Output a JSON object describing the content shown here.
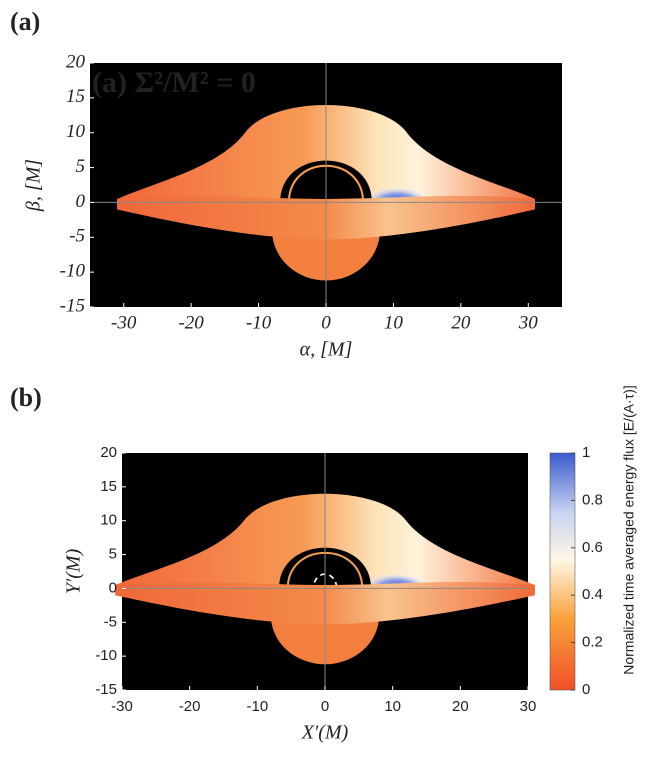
{
  "panels": [
    {
      "label": "(a)",
      "annotation": "(a) Σ²/M² = 0",
      "xlabel": "α, [M]",
      "ylabel": "β, [M]",
      "xlim": [
        -35,
        35
      ],
      "ylim": [
        -15,
        20
      ],
      "xticks": [
        -30,
        -20,
        -10,
        0,
        10,
        20,
        30
      ],
      "yticks": [
        -15,
        -10,
        -5,
        0,
        5,
        10,
        15,
        20
      ]
    },
    {
      "label": "(b)",
      "xlabel": "X′(M)",
      "ylabel": "Y′(M)",
      "xlim": [
        -30,
        30
      ],
      "ylim": [
        -15,
        20
      ],
      "xticks": [
        -30,
        -20,
        -10,
        0,
        10,
        20,
        30
      ],
      "yticks": [
        -15,
        -10,
        -5,
        0,
        5,
        10,
        15,
        20
      ],
      "colorbar": {
        "label": "Normalized time averaged energy flux [E/(A·τ)]",
        "lim": [
          0,
          1
        ],
        "ticks": [
          0,
          0.2,
          0.4,
          0.6,
          0.8,
          1
        ]
      }
    }
  ]
}
